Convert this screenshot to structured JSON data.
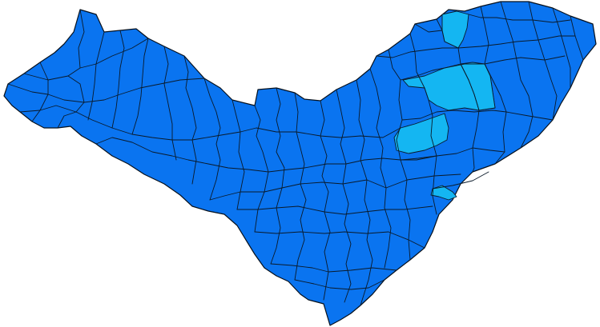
{
  "map": {
    "region": "state-map-municipalities",
    "colors": {
      "background": "#ffffff",
      "base_fill": "#0a74f0",
      "highlight_fill": "#14b6f2",
      "boundary": "#0a1a2a"
    },
    "highlighted_municipality_count": 5
  }
}
